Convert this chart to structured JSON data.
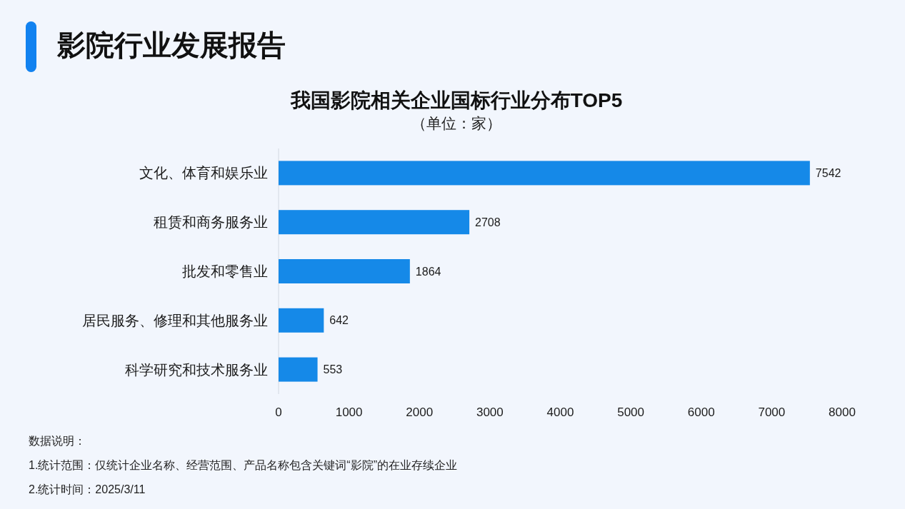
{
  "chart_data": {
    "type": "bar",
    "orientation": "horizontal",
    "title": "我国影院相关企业国标行业分布TOP5",
    "subtitle": "（单位：家）",
    "categories": [
      "文化、体育和娱乐业",
      "租赁和商务服务业",
      "批发和零售业",
      "居民服务、修理和其他服务业",
      "科学研究和技术服务业"
    ],
    "values": [
      7542,
      2708,
      1864,
      642,
      553
    ],
    "color": "#1589e8",
    "xlim": [
      0,
      8000
    ],
    "xticks": [
      0,
      1000,
      2000,
      3000,
      4000,
      5000,
      6000,
      7000,
      8000
    ],
    "data_labels": true,
    "annotations": [
      "影院行业发展报告",
      "数据说明：",
      "1.统计范围：仅统计企业名称、经营范围、产品名称包含关键词“影院”的在业存续企业",
      "2.统计时间：2025/3/11"
    ]
  }
}
